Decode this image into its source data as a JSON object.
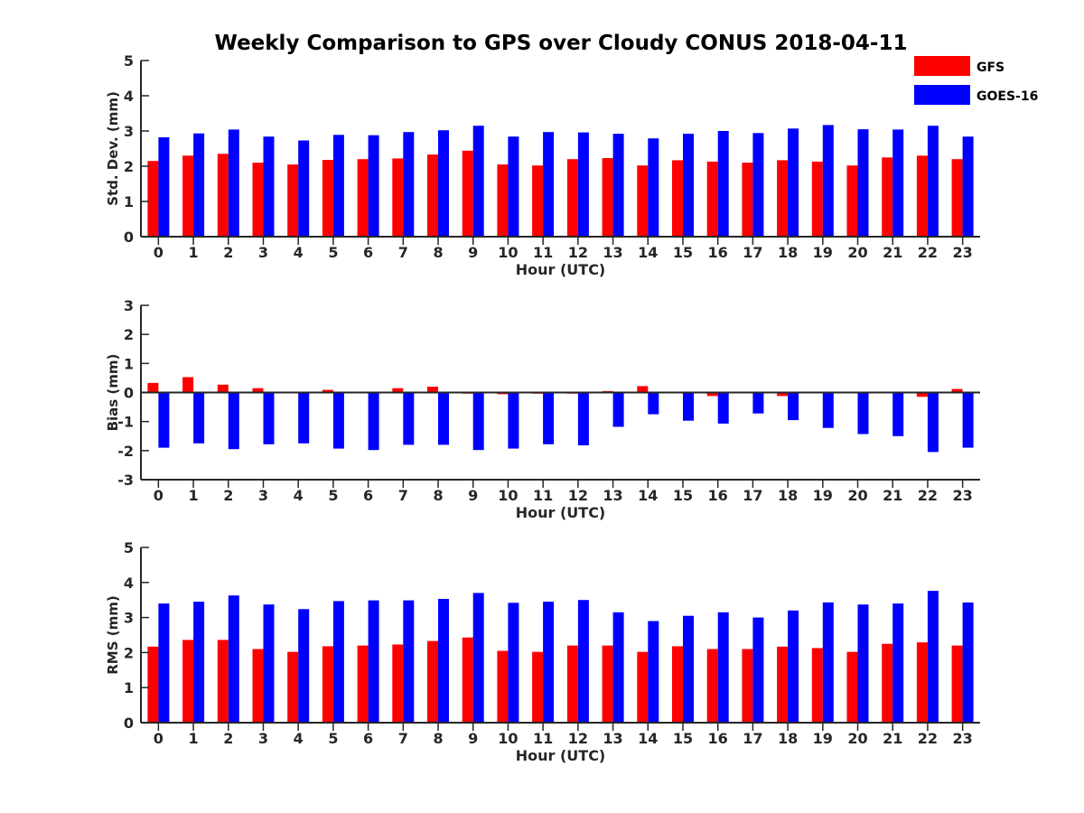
{
  "figure": {
    "title": "Weekly Comparison to GPS over Cloudy CONUS 2018-04-11"
  },
  "colors": {
    "GFS": "#ff0000",
    "GOES-16": "#0000ff",
    "axis": "#262626"
  },
  "legend": {
    "placement": "top-right",
    "entries": [
      "GFS",
      "GOES-16"
    ]
  },
  "chart_data": [
    {
      "type": "bar",
      "xlabel": "Hour (UTC)",
      "ylabel": "Std. Dev. (mm)",
      "ylim": [
        0,
        5
      ],
      "yticks": [
        0,
        1,
        2,
        3,
        4,
        5
      ],
      "grid": false,
      "categories": [
        "0",
        "1",
        "2",
        "3",
        "4",
        "5",
        "6",
        "7",
        "8",
        "9",
        "10",
        "11",
        "12",
        "13",
        "14",
        "15",
        "16",
        "17",
        "18",
        "19",
        "20",
        "21",
        "22",
        "23"
      ],
      "series": [
        {
          "name": "GFS",
          "color": "#ff0000",
          "values": [
            2.15,
            2.3,
            2.35,
            2.1,
            2.05,
            2.18,
            2.2,
            2.22,
            2.33,
            2.44,
            2.05,
            2.02,
            2.2,
            2.23,
            2.02,
            2.17,
            2.13,
            2.1,
            2.17,
            2.13,
            2.02,
            2.25,
            2.3,
            2.2
          ]
        },
        {
          "name": "GOES-16",
          "color": "#0000ff",
          "values": [
            2.82,
            2.93,
            3.04,
            2.84,
            2.73,
            2.89,
            2.88,
            2.97,
            3.02,
            3.15,
            2.84,
            2.97,
            2.96,
            2.92,
            2.79,
            2.92,
            3.0,
            2.94,
            3.07,
            3.17,
            3.05,
            3.04,
            3.15,
            2.84
          ]
        }
      ]
    },
    {
      "type": "bar",
      "xlabel": "Hour (UTC)",
      "ylabel": "Bias (mm)",
      "ylim": [
        -3,
        3
      ],
      "yticks": [
        -3,
        -2,
        -1,
        0,
        1,
        2,
        3
      ],
      "grid": false,
      "zero_line": true,
      "categories": [
        "0",
        "1",
        "2",
        "3",
        "4",
        "5",
        "6",
        "7",
        "8",
        "9",
        "10",
        "11",
        "12",
        "13",
        "14",
        "15",
        "16",
        "17",
        "18",
        "19",
        "20",
        "21",
        "22",
        "23"
      ],
      "series": [
        {
          "name": "GFS",
          "color": "#ff0000",
          "values": [
            0.33,
            0.53,
            0.27,
            0.15,
            0.02,
            0.09,
            -0.02,
            0.15,
            0.2,
            -0.04,
            -0.06,
            -0.04,
            -0.04,
            0.05,
            0.22,
            0.02,
            -0.12,
            -0.02,
            -0.12,
            -0.03,
            -0.03,
            0.02,
            -0.15,
            0.12
          ]
        },
        {
          "name": "GOES-16",
          "color": "#0000ff",
          "values": [
            -1.9,
            -1.75,
            -1.95,
            -1.78,
            -1.75,
            -1.93,
            -1.98,
            -1.8,
            -1.8,
            -1.98,
            -1.93,
            -1.78,
            -1.82,
            -1.18,
            -0.75,
            -0.97,
            -1.07,
            -0.72,
            -0.95,
            -1.22,
            -1.43,
            -1.5,
            -2.05,
            -1.9
          ]
        }
      ]
    },
    {
      "type": "bar",
      "xlabel": "Hour (UTC)",
      "ylabel": "RMS (mm)",
      "ylim": [
        0,
        5
      ],
      "yticks": [
        0,
        1,
        2,
        3,
        4,
        5
      ],
      "grid": false,
      "categories": [
        "0",
        "1",
        "2",
        "3",
        "4",
        "5",
        "6",
        "7",
        "8",
        "9",
        "10",
        "11",
        "12",
        "13",
        "14",
        "15",
        "16",
        "17",
        "18",
        "19",
        "20",
        "21",
        "22",
        "23"
      ],
      "series": [
        {
          "name": "GFS",
          "color": "#ff0000",
          "values": [
            2.17,
            2.36,
            2.36,
            2.1,
            2.02,
            2.18,
            2.2,
            2.23,
            2.33,
            2.43,
            2.05,
            2.02,
            2.2,
            2.2,
            2.02,
            2.18,
            2.1,
            2.1,
            2.17,
            2.13,
            2.02,
            2.25,
            2.29,
            2.2
          ]
        },
        {
          "name": "GOES-16",
          "color": "#0000ff",
          "values": [
            3.4,
            3.45,
            3.63,
            3.37,
            3.24,
            3.47,
            3.49,
            3.49,
            3.53,
            3.7,
            3.42,
            3.45,
            3.5,
            3.15,
            2.9,
            3.05,
            3.15,
            3.0,
            3.2,
            3.43,
            3.37,
            3.4,
            3.76,
            3.43
          ]
        }
      ]
    }
  ]
}
